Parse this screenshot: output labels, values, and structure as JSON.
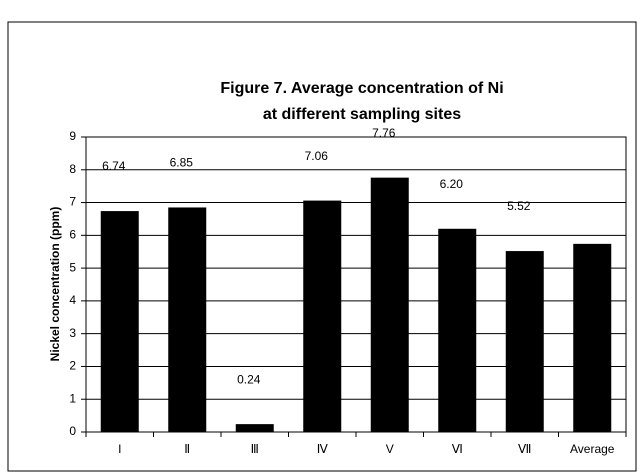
{
  "chart_data": {
    "type": "bar",
    "title": [
      "Figure 7. Average concentration of Ni",
      "at different sampling sites"
    ],
    "y_label": "Nickel concentration (ppm)",
    "categories": [
      "I",
      "Ⅱ",
      "Ⅲ",
      "Ⅳ",
      "V",
      "Ⅵ",
      "Ⅶ",
      "Average"
    ],
    "values": [
      6.74,
      6.85,
      0.24,
      7.06,
      7.76,
      6.2,
      5.52,
      5.74
    ],
    "value_labels": [
      "6.74",
      "6.85",
      "0.24",
      "7.06",
      "7.76",
      "6.20",
      "5.52",
      null
    ],
    "color": "#000000",
    "ylim": [
      0,
      9
    ],
    "yticks": [
      0,
      1,
      2,
      3,
      4,
      5,
      6,
      7,
      8,
      9
    ],
    "grid": true
  }
}
